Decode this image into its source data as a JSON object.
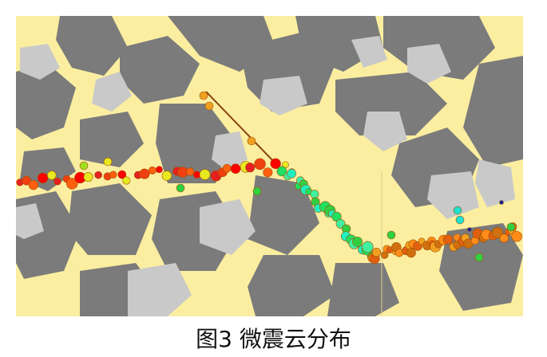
{
  "figure": {
    "caption": "图3 微震云分布"
  }
}
